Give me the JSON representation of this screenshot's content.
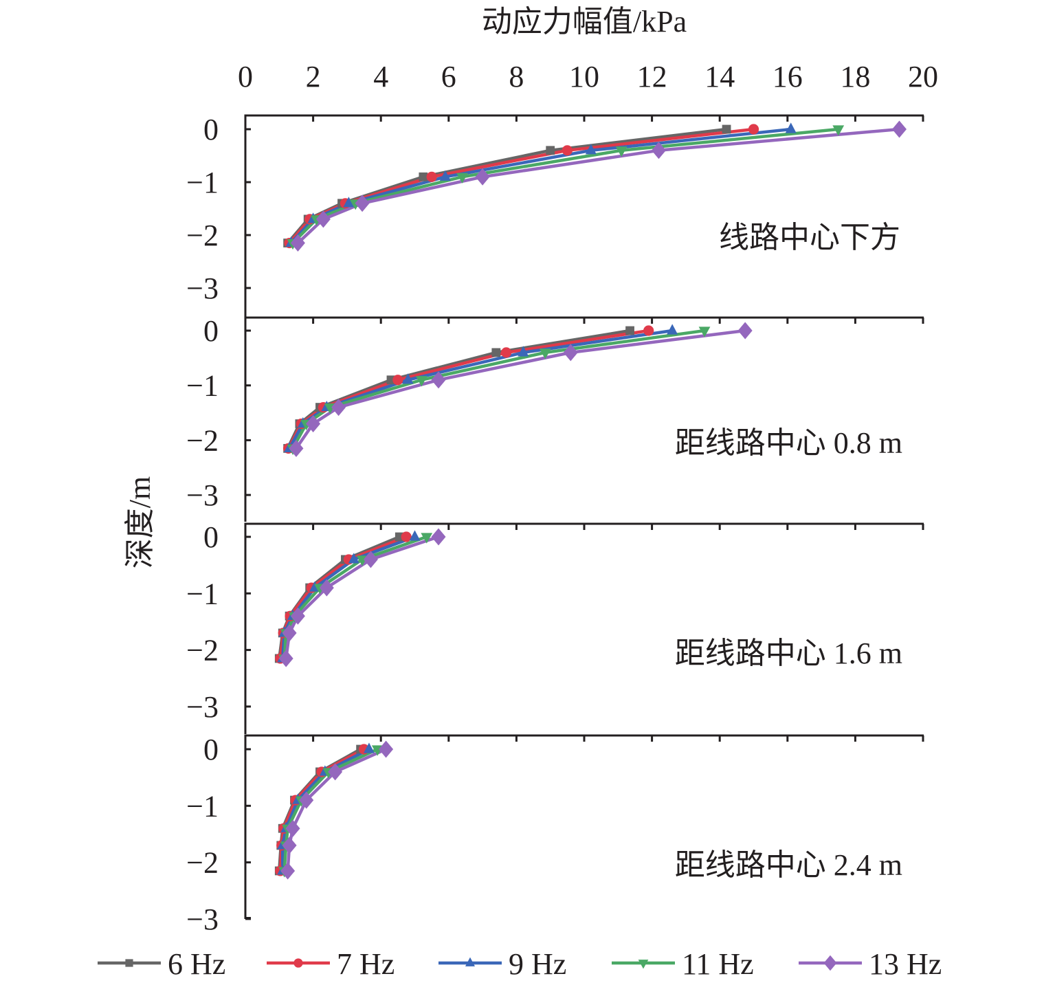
{
  "chart_data": {
    "type": "line",
    "title": "",
    "xlabel": "动应力幅值/kPa",
    "ylabel": "深度/m",
    "xlim": [
      0,
      20
    ],
    "ylim": [
      -3.5,
      0.25
    ],
    "x_ticks": [
      "0",
      "2",
      "4",
      "6",
      "8",
      "10",
      "12",
      "14",
      "16",
      "18",
      "20"
    ],
    "x_tick_values": [
      0,
      2,
      4,
      6,
      8,
      10,
      12,
      14,
      16,
      18,
      20
    ],
    "y_ticks": [
      "0",
      "−1",
      "−2",
      "−3"
    ],
    "y_tick_values": [
      0,
      -1,
      -2,
      -3
    ],
    "x_axis_position": "top",
    "grid": false,
    "legend_position": "bottom",
    "depths": [
      0,
      -0.4,
      -0.9,
      -1.4,
      -1.7,
      -2.15
    ],
    "series_styles": [
      {
        "name": "6 Hz",
        "color": "#666666",
        "marker": "square"
      },
      {
        "name": "7 Hz",
        "color": "#e03a4a",
        "marker": "circle"
      },
      {
        "name": "9 Hz",
        "color": "#3a67b8",
        "marker": "triangle-up"
      },
      {
        "name": "11 Hz",
        "color": "#4aa865",
        "marker": "triangle-down"
      },
      {
        "name": "13 Hz",
        "color": "#9467bd",
        "marker": "diamond"
      }
    ],
    "panels": [
      {
        "annotation": "线路中心下方",
        "series": [
          {
            "name": "6 Hz",
            "values": [
              14.2,
              9.0,
              5.25,
              2.85,
              1.85,
              1.25
            ]
          },
          {
            "name": "7 Hz",
            "values": [
              15.0,
              9.5,
              5.5,
              2.95,
              1.9,
              1.3
            ]
          },
          {
            "name": "9 Hz",
            "values": [
              16.1,
              10.2,
              5.9,
              3.05,
              2.0,
              1.35
            ]
          },
          {
            "name": "11 Hz",
            "values": [
              17.5,
              11.1,
              6.4,
              3.25,
              2.1,
              1.4
            ]
          },
          {
            "name": "13 Hz",
            "values": [
              19.3,
              12.2,
              7.0,
              3.45,
              2.3,
              1.55
            ]
          }
        ]
      },
      {
        "annotation": "距线路中心 0.8 m",
        "series": [
          {
            "name": "6 Hz",
            "values": [
              11.35,
              7.4,
              4.3,
              2.2,
              1.6,
              1.25
            ]
          },
          {
            "name": "7 Hz",
            "values": [
              11.9,
              7.7,
              4.5,
              2.3,
              1.65,
              1.27
            ]
          },
          {
            "name": "9 Hz",
            "values": [
              12.6,
              8.2,
              4.8,
              2.4,
              1.7,
              1.3
            ]
          },
          {
            "name": "11 Hz",
            "values": [
              13.55,
              8.85,
              5.2,
              2.5,
              1.8,
              1.4
            ]
          },
          {
            "name": "13 Hz",
            "values": [
              14.75,
              9.6,
              5.7,
              2.75,
              2.0,
              1.5
            ]
          }
        ]
      },
      {
        "annotation": "距线路中心 1.6 m",
        "series": [
          {
            "name": "6 Hz",
            "values": [
              4.55,
              2.95,
              1.9,
              1.3,
              1.1,
              1.0
            ]
          },
          {
            "name": "7 Hz",
            "values": [
              4.75,
              3.05,
              1.95,
              1.32,
              1.12,
              1.03
            ]
          },
          {
            "name": "9 Hz",
            "values": [
              5.0,
              3.2,
              2.05,
              1.4,
              1.15,
              1.1
            ]
          },
          {
            "name": "11 Hz",
            "values": [
              5.35,
              3.45,
              2.2,
              1.45,
              1.2,
              1.15
            ]
          },
          {
            "name": "13 Hz",
            "values": [
              5.7,
              3.7,
              2.4,
              1.55,
              1.3,
              1.2
            ]
          }
        ]
      },
      {
        "annotation": "距线路中心 2.4 m",
        "series": [
          {
            "name": "6 Hz",
            "values": [
              3.4,
              2.2,
              1.45,
              1.1,
              1.05,
              1.0
            ]
          },
          {
            "name": "7 Hz",
            "values": [
              3.5,
              2.25,
              1.48,
              1.13,
              1.07,
              1.03
            ]
          },
          {
            "name": "9 Hz",
            "values": [
              3.65,
              2.35,
              1.55,
              1.2,
              1.1,
              1.1
            ]
          },
          {
            "name": "11 Hz",
            "values": [
              3.9,
              2.45,
              1.65,
              1.25,
              1.2,
              1.15
            ]
          },
          {
            "name": "13 Hz",
            "values": [
              4.15,
              2.65,
              1.8,
              1.4,
              1.3,
              1.25
            ]
          }
        ]
      }
    ]
  }
}
